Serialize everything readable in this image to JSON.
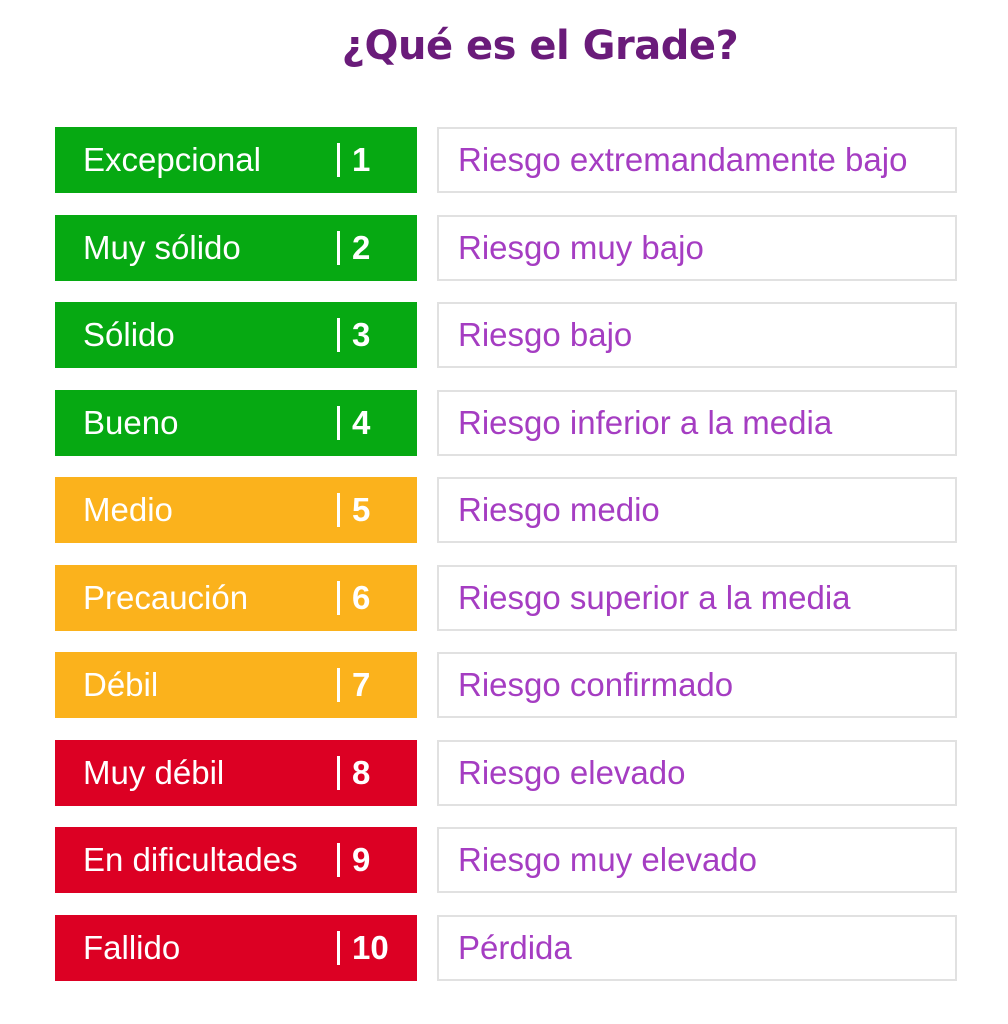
{
  "title": "¿Qué es el Grade?",
  "colors": {
    "title": "#6a1b7a",
    "description_text": "#a53dc2",
    "green": "#06a912",
    "orange": "#fbb21c",
    "red": "#dc0023"
  },
  "grades": [
    {
      "label": "Excepcional",
      "number": "1",
      "description": "Riesgo extremandamente bajo",
      "color": "#06a912"
    },
    {
      "label": "Muy sólido",
      "number": "2",
      "description": "Riesgo muy bajo",
      "color": "#06a912"
    },
    {
      "label": "Sólido",
      "number": "3",
      "description": "Riesgo bajo",
      "color": "#06a912"
    },
    {
      "label": "Bueno",
      "number": "4",
      "description": "Riesgo inferior a la media",
      "color": "#06a912"
    },
    {
      "label": "Medio",
      "number": "5",
      "description": "Riesgo medio",
      "color": "#fbb21c"
    },
    {
      "label": "Precaución",
      "number": "6",
      "description": "Riesgo superior a la media",
      "color": "#fbb21c"
    },
    {
      "label": "Débil",
      "number": "7",
      "description": "Riesgo confirmado",
      "color": "#fbb21c"
    },
    {
      "label": "Muy débil",
      "number": "8",
      "description": "Riesgo elevado",
      "color": "#dc0023"
    },
    {
      "label": "En dificultades",
      "number": "9",
      "description": "Riesgo muy elevado",
      "color": "#dc0023"
    },
    {
      "label": "Fallido",
      "number": "10",
      "description": "Pérdida",
      "color": "#dc0023"
    }
  ]
}
